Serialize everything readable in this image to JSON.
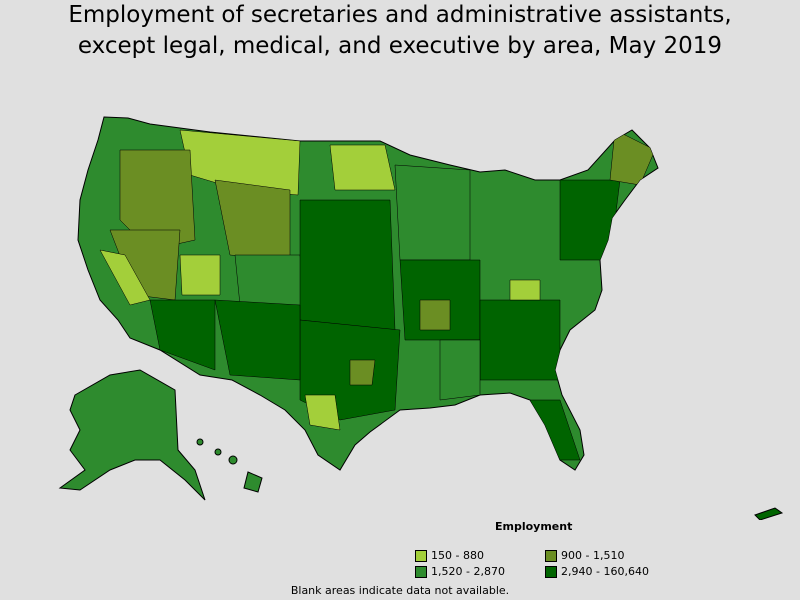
{
  "title": {
    "line1": "Employment of secretaries and administrative assistants,",
    "line2": "except legal, medical, and executive by area, May 2019"
  },
  "legend": {
    "title": "Employment",
    "items": [
      {
        "label": "150 - 880",
        "color": "#a3cf3a"
      },
      {
        "label": "900 - 1,510",
        "color": "#6b8e23"
      },
      {
        "label": "1,520 - 2,870",
        "color": "#2e8b2e"
      },
      {
        "label": "2,940 - 160,640",
        "color": "#006400"
      }
    ]
  },
  "footnote": "Blank areas indicate data not available.",
  "map": {
    "background": "#e0e0e0",
    "border_color": "#000000",
    "regions": [
      "contiguous-us",
      "alaska",
      "hawaii",
      "puerto-rico"
    ]
  }
}
